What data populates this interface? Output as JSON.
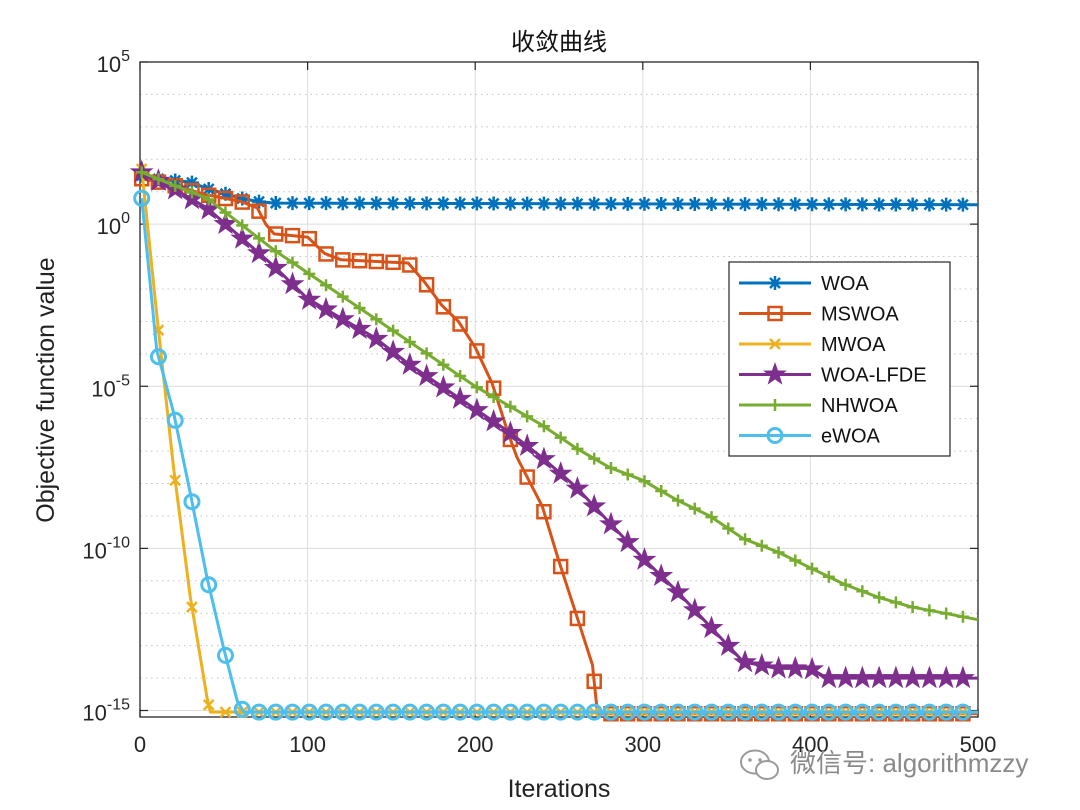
{
  "chart_data": {
    "type": "line",
    "title": "收敛曲线",
    "xlabel": "Iterations",
    "ylabel": "Objective function value",
    "yscale": "log",
    "xlim": [
      0,
      500
    ],
    "ylim_exp": [
      -15.2,
      5
    ],
    "xticks": [
      0,
      100,
      200,
      300,
      400,
      500
    ],
    "xtick_labels": [
      "0",
      "100",
      "200",
      "300",
      "400",
      "500"
    ],
    "yticks_exp": [
      -15,
      -10,
      -5,
      0,
      5
    ],
    "ytick_labels": [
      {
        "base": "10",
        "exp": "-15"
      },
      {
        "base": "10",
        "exp": "-10"
      },
      {
        "base": "10",
        "exp": "-5"
      },
      {
        "base": "10",
        "exp": "0"
      },
      {
        "base": "10",
        "exp": "5"
      }
    ],
    "grid": true,
    "legend_position": "center-right",
    "series": [
      {
        "name": "WOA",
        "color": "#0072BD",
        "marker": "asterisk",
        "x": [
          1,
          10,
          20,
          30,
          40,
          50,
          60,
          70,
          80,
          500
        ],
        "log10_y": [
          1.5,
          1.4,
          1.35,
          1.3,
          1.1,
          0.95,
          0.8,
          0.7,
          0.65,
          0.6
        ]
      },
      {
        "name": "MSWOA",
        "color": "#D95319",
        "marker": "square",
        "x": [
          1,
          20,
          40,
          60,
          70,
          75,
          80,
          100,
          110,
          120,
          160,
          170,
          180,
          190,
          200,
          210,
          220,
          225,
          230,
          240,
          250,
          260,
          270,
          273,
          500
        ],
        "log10_y": [
          1.4,
          1.2,
          0.9,
          0.7,
          0.5,
          0.0,
          -0.3,
          -0.4,
          -0.9,
          -1.1,
          -1.2,
          -1.8,
          -2.5,
          -3.0,
          -3.8,
          -4.9,
          -6.5,
          -7.2,
          -7.7,
          -8.7,
          -10.4,
          -12.0,
          -13.6,
          -15.1,
          -15.1
        ]
      },
      {
        "name": "MWOA",
        "color": "#EDB120",
        "marker": "x",
        "x": [
          1,
          10,
          20,
          30,
          40,
          42,
          500
        ],
        "log10_y": [
          1.7,
          -2.8,
          -7.5,
          -11.5,
          -14.6,
          -15.05,
          -15.05
        ]
      },
      {
        "name": "WOA-LFDE",
        "color": "#7E2F8E",
        "marker": "pentagram",
        "x": [
          1,
          20,
          40,
          60,
          80,
          100,
          140,
          160,
          180,
          200,
          220,
          240,
          260,
          280,
          300,
          320,
          340,
          360,
          380,
          400,
          410,
          500
        ],
        "log10_y": [
          1.6,
          1.1,
          0.5,
          -0.4,
          -1.3,
          -2.3,
          -3.5,
          -4.3,
          -5.0,
          -5.7,
          -6.4,
          -7.2,
          -8.1,
          -9.2,
          -10.3,
          -11.3,
          -12.4,
          -13.5,
          -13.7,
          -13.7,
          -14.0,
          -14.0
        ]
      },
      {
        "name": "NHWOA",
        "color": "#77AC30",
        "marker": "plus",
        "x": [
          1,
          20,
          40,
          60,
          80,
          100,
          120,
          140,
          160,
          180,
          200,
          220,
          240,
          260,
          280,
          300,
          320,
          340,
          360,
          380,
          400,
          420,
          440,
          460,
          480,
          500
        ],
        "log10_y": [
          1.6,
          1.2,
          0.8,
          0.0,
          -0.8,
          -1.5,
          -2.2,
          -2.9,
          -3.6,
          -4.3,
          -5.0,
          -5.6,
          -6.2,
          -6.9,
          -7.5,
          -7.9,
          -8.5,
          -9.0,
          -9.7,
          -10.1,
          -10.6,
          -11.1,
          -11.5,
          -11.8,
          -12.0,
          -12.2
        ]
      },
      {
        "name": "eWOA",
        "color": "#4DBEEE",
        "marker": "circle",
        "x": [
          1,
          10,
          20,
          30,
          40,
          50,
          58,
          62,
          500
        ],
        "log10_y": [
          0.8,
          -3.9,
          -5.8,
          -8.3,
          -10.9,
          -13.1,
          -14.7,
          -15.05,
          -15.05
        ]
      }
    ]
  },
  "watermark": {
    "prefix": "微信号: ",
    "name": "algorithmzzy"
  }
}
